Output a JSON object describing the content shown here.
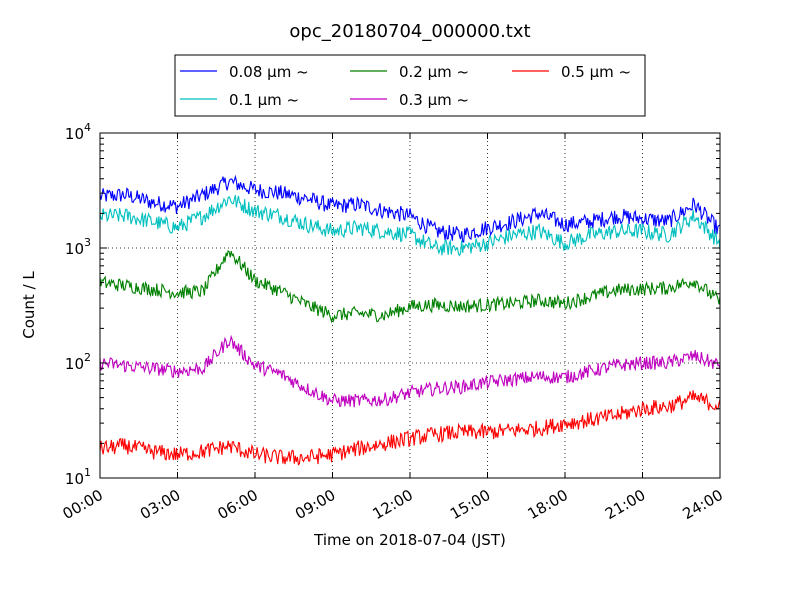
{
  "chart_data": {
    "type": "line",
    "title": "opc_20180704_000000.txt",
    "xlabel": "Time on 2018-07-04 (JST)",
    "ylabel": "Count / L",
    "xlim_hours": [
      0,
      24
    ],
    "ylim": [
      10,
      10000
    ],
    "yscale": "log",
    "grid": true,
    "legend_position": "top-center, above plot",
    "x_ticks": [
      "00:00",
      "03:00",
      "06:00",
      "09:00",
      "12:00",
      "15:00",
      "18:00",
      "21:00",
      "24:00"
    ],
    "y_ticks": [
      {
        "value": 10,
        "label_base": "10",
        "label_exp": "1"
      },
      {
        "value": 100,
        "label_base": "10",
        "label_exp": "2"
      },
      {
        "value": 1000,
        "label_base": "10",
        "label_exp": "3"
      },
      {
        "value": 10000,
        "label_base": "10",
        "label_exp": "4"
      }
    ],
    "x": [
      "00:00",
      "01:00",
      "02:00",
      "03:00",
      "04:00",
      "05:00",
      "06:00",
      "07:00",
      "08:00",
      "09:00",
      "10:00",
      "11:00",
      "12:00",
      "13:00",
      "14:00",
      "15:00",
      "16:00",
      "17:00",
      "18:00",
      "19:00",
      "20:00",
      "21:00",
      "22:00",
      "23:00",
      "24:00"
    ],
    "series": [
      {
        "name": "0.08 μm ~",
        "color": "#0000ff",
        "values": [
          2800,
          2900,
          2500,
          2300,
          2900,
          3800,
          3200,
          3000,
          2700,
          2300,
          2400,
          2100,
          1900,
          1400,
          1300,
          1500,
          1700,
          2000,
          1600,
          1700,
          1900,
          1800,
          1700,
          2400,
          1400
        ]
      },
      {
        "name": "0.1 μm ~",
        "color": "#00bfbf",
        "values": [
          1900,
          1900,
          1700,
          1500,
          1900,
          2700,
          2100,
          1900,
          1600,
          1400,
          1500,
          1400,
          1300,
          1000,
          1000,
          1100,
          1300,
          1400,
          1100,
          1300,
          1400,
          1400,
          1300,
          1900,
          1100
        ]
      },
      {
        "name": "0.2 μm ~",
        "color": "#008000",
        "values": [
          500,
          470,
          440,
          410,
          420,
          950,
          520,
          420,
          320,
          260,
          270,
          260,
          310,
          320,
          310,
          320,
          330,
          350,
          330,
          380,
          430,
          440,
          450,
          520,
          340
        ]
      },
      {
        "name": "0.3 μm ~",
        "color": "#bf00bf",
        "values": [
          100,
          95,
          90,
          85,
          90,
          160,
          95,
          80,
          60,
          47,
          47,
          48,
          55,
          60,
          62,
          68,
          72,
          76,
          75,
          85,
          95,
          100,
          100,
          115,
          95
        ]
      },
      {
        "name": "0.5 μm ~",
        "color": "#ff0000",
        "values": [
          18,
          19,
          17,
          16,
          17,
          19,
          16,
          15,
          15,
          16,
          18,
          20,
          22,
          24,
          25,
          25,
          26,
          27,
          30,
          32,
          35,
          40,
          42,
          50,
          42
        ]
      }
    ]
  }
}
